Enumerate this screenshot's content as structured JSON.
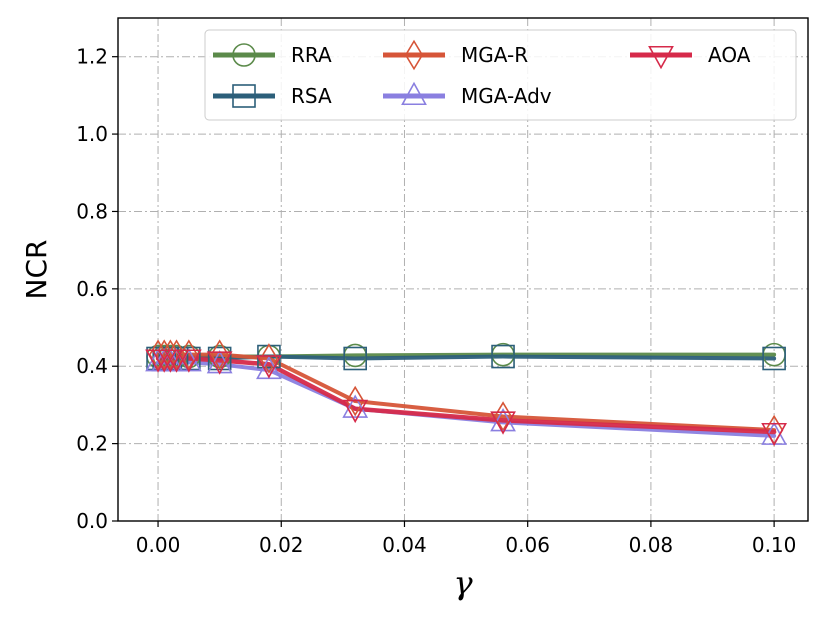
{
  "chart_data": {
    "type": "line",
    "title": "",
    "xlabel": "γ",
    "ylabel": "NCR",
    "xlim": [
      -0.0065,
      0.1055
    ],
    "ylim": [
      0.0,
      1.3
    ],
    "xticks": [
      0.0,
      0.02,
      0.04,
      0.06,
      0.08,
      0.1
    ],
    "xtick_labels": [
      "0.00",
      "0.02",
      "0.04",
      "0.06",
      "0.08",
      "0.10"
    ],
    "yticks": [
      0.0,
      0.2,
      0.4,
      0.6,
      0.8,
      1.0,
      1.2
    ],
    "ytick_labels": [
      "0.0",
      "0.2",
      "0.4",
      "0.6",
      "0.8",
      "1.0",
      "1.2"
    ],
    "grid": true,
    "legend_position": "top-right",
    "x": [
      0.0,
      0.001,
      0.002,
      0.003,
      0.005,
      0.01,
      0.018,
      0.032,
      0.056,
      0.1
    ],
    "series": [
      {
        "name": "RRA",
        "color": "#5b8a4a",
        "marker": "circle",
        "values": [
          0.425,
          0.425,
          0.425,
          0.425,
          0.425,
          0.425,
          0.425,
          0.428,
          0.43,
          0.43
        ]
      },
      {
        "name": "RSA",
        "color": "#2c5f7a",
        "marker": "square",
        "values": [
          0.42,
          0.42,
          0.42,
          0.42,
          0.42,
          0.42,
          0.425,
          0.42,
          0.425,
          0.42
        ]
      },
      {
        "name": "MGA-R",
        "color": "#d65538",
        "marker": "diamond",
        "values": [
          0.43,
          0.43,
          0.43,
          0.43,
          0.43,
          0.43,
          0.42,
          0.31,
          0.27,
          0.235
        ]
      },
      {
        "name": "MGA-Adv",
        "color": "#8a7fe0",
        "marker": "triangle-up",
        "values": [
          0.41,
          0.41,
          0.41,
          0.41,
          0.41,
          0.405,
          0.39,
          0.29,
          0.255,
          0.22
        ]
      },
      {
        "name": "AOA",
        "color": "#d62a4a",
        "marker": "triangle-down",
        "values": [
          0.42,
          0.42,
          0.42,
          0.42,
          0.42,
          0.415,
          0.405,
          0.29,
          0.26,
          0.23
        ]
      }
    ]
  }
}
